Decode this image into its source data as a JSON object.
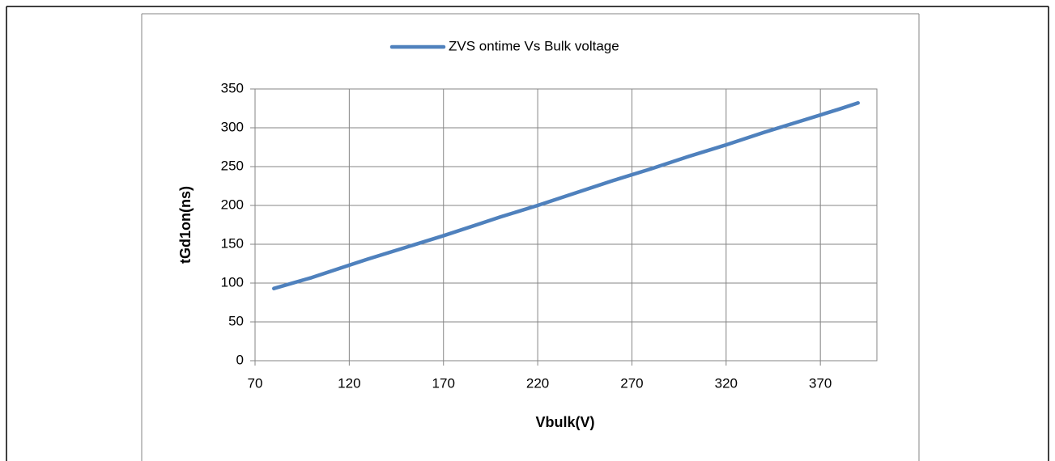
{
  "chart_data": {
    "type": "line",
    "x": [
      80,
      100,
      120,
      130,
      150,
      170,
      190,
      200,
      220,
      240,
      260,
      280,
      300,
      320,
      340,
      360,
      380,
      390
    ],
    "series": [
      {
        "name": "ZVS ontime Vs Bulk voltage",
        "color": "#4f81bd",
        "values": [
          93,
          107,
          123,
          131,
          146,
          161,
          177,
          185,
          200,
          216,
          232,
          247,
          263,
          278,
          294,
          309,
          324,
          332
        ]
      }
    ],
    "xlabel": "Vbulk(V)",
    "ylabel": "tGd1on(ns)",
    "xlim": [
      70,
      400
    ],
    "xticks": [
      70,
      120,
      170,
      220,
      270,
      320,
      370
    ],
    "ylim": [
      0,
      350
    ],
    "yticks": [
      0,
      50,
      100,
      150,
      200,
      250,
      300,
      350
    ],
    "grid": true,
    "legend": "top"
  }
}
